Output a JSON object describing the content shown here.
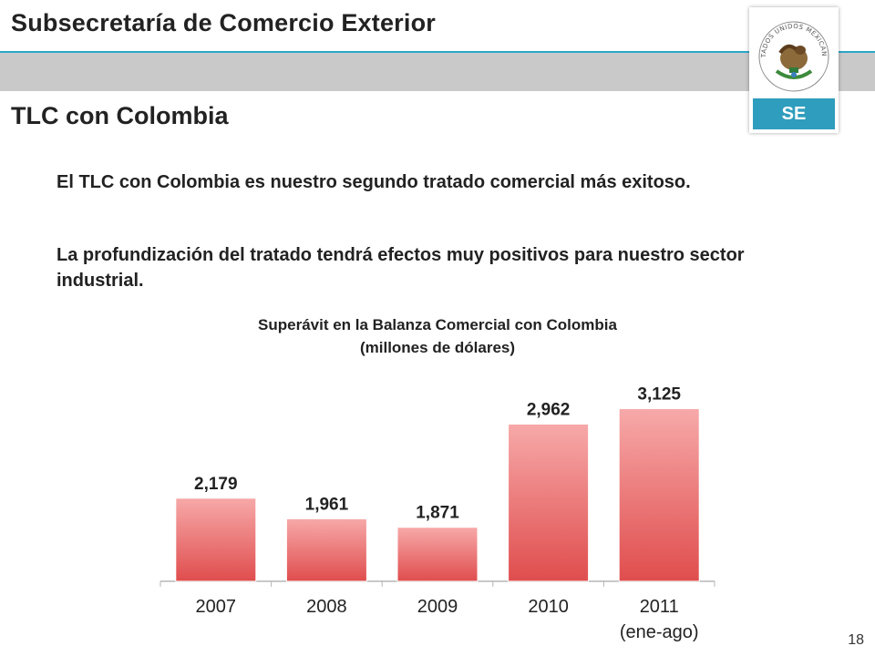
{
  "header": {
    "title": "Subsecretaría de Comercio Exterior",
    "logo_text": "SE",
    "seal_text": "ESTADOS UNIDOS MEXICANOS"
  },
  "section": {
    "title": "TLC con Colombia"
  },
  "body": {
    "paragraph_1": "El TLC con Colombia es nuestro segundo tratado comercial más exitoso.",
    "paragraph_2": "La profundización del tratado tendrá efectos muy positivos para nuestro sector industrial."
  },
  "chart_title": {
    "line_1": "Superávit en la Balanza Comercial con Colombia",
    "line_2": "(millones de dólares)"
  },
  "chart_data": {
    "type": "bar",
    "categories": [
      "2007",
      "2008",
      "2009",
      "2010",
      "2011"
    ],
    "category_sublabels": [
      "",
      "",
      "",
      "",
      "(ene-ago)"
    ],
    "values": [
      2179,
      1961,
      1871,
      2962,
      3125
    ],
    "value_labels": [
      "2,179",
      "1,961",
      "1,871",
      "2,962",
      "3,125"
    ],
    "ylim": [
      1300,
      3400
    ],
    "grid": false,
    "bar_color": "#e85a5a"
  },
  "footer": {
    "page_number": "18"
  },
  "colors": {
    "accent": "#2aa7c9",
    "header_bar": "#c9c9c9",
    "logo_band": "#2f9dbd"
  }
}
